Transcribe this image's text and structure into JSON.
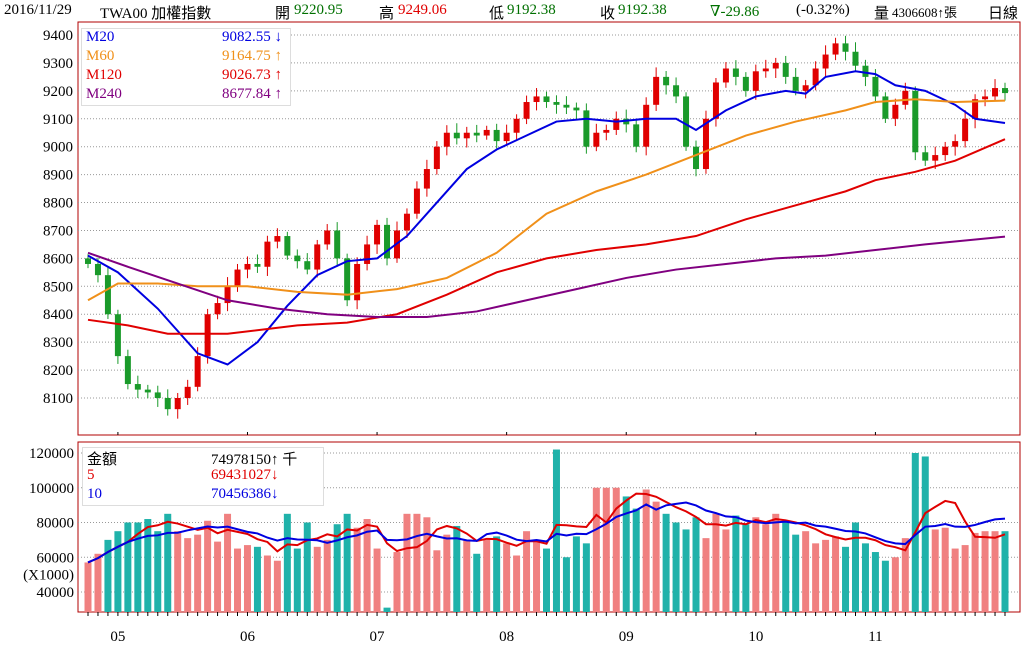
{
  "header": {
    "date": "2016/11/29",
    "symbol": "TWA00 加權指數",
    "open_label": "開",
    "open": "9220.95",
    "high_label": "高",
    "high": "9249.06",
    "low_label": "低",
    "low": "9192.38",
    "close_label": "收",
    "close": "9192.38",
    "change": "∇-29.86",
    "change_pct": "(-0.32%)",
    "volume_label": "量",
    "volume": "4306608↑張",
    "period": "日線"
  },
  "colors": {
    "up": "#e00000",
    "down": "#1a9a2a",
    "vol_up": "#f08080",
    "vol_down": "#20b2aa",
    "m20": "#0000e0",
    "m60": "#f0901a",
    "m120": "#e00000",
    "m240": "#800080"
  },
  "chart_data": [
    {
      "type": "candlestick",
      "title": "TWA00 加權指數 日線",
      "ylim": [
        8000,
        9420
      ],
      "yticks": [
        8100,
        8200,
        8300,
        8400,
        8500,
        8600,
        8700,
        8800,
        8900,
        9000,
        9100,
        9200,
        9300,
        9400
      ],
      "month_labels": [
        {
          "label": "05",
          "index": 3
        },
        {
          "label": "06",
          "index": 16
        },
        {
          "label": "07",
          "index": 29
        },
        {
          "label": "08",
          "index": 42
        },
        {
          "label": "09",
          "index": 54
        },
        {
          "label": "10",
          "index": 67
        },
        {
          "label": "11",
          "index": 79
        }
      ],
      "closes": [
        8580,
        8540,
        8400,
        8250,
        8150,
        8130,
        8120,
        8100,
        8060,
        8100,
        8140,
        8250,
        8400,
        8440,
        8500,
        8560,
        8580,
        8570,
        8660,
        8680,
        8610,
        8590,
        8560,
        8650,
        8700,
        8600,
        8450,
        8580,
        8650,
        8720,
        8600,
        8700,
        8760,
        8850,
        8920,
        9000,
        9050,
        9030,
        9050,
        9040,
        9060,
        9020,
        9050,
        9100,
        9160,
        9180,
        9160,
        9150,
        9140,
        9130,
        9000,
        9050,
        9060,
        9100,
        9080,
        9000,
        9150,
        9250,
        9220,
        9180,
        9000,
        8920,
        9100,
        9230,
        9280,
        9250,
        9200,
        9270,
        9280,
        9300,
        9250,
        9200,
        9220,
        9280,
        9330,
        9370,
        9340,
        9290,
        9250,
        9180,
        9100,
        9150,
        9200,
        8980,
        8950,
        8970,
        9000,
        9020,
        9100,
        9170,
        9180,
        9210,
        9192
      ],
      "moving_averages": [
        {
          "name": "M20",
          "value": "9082.55 ↓",
          "color_key": "m20",
          "points": [
            [
              0,
              8610
            ],
            [
              3,
              8550
            ],
            [
              7,
              8420
            ],
            [
              11,
              8260
            ],
            [
              14,
              8220
            ],
            [
              17,
              8300
            ],
            [
              20,
              8430
            ],
            [
              23,
              8540
            ],
            [
              26,
              8590
            ],
            [
              29,
              8600
            ],
            [
              32,
              8680
            ],
            [
              35,
              8800
            ],
            [
              38,
              8920
            ],
            [
              41,
              8990
            ],
            [
              44,
              9040
            ],
            [
              47,
              9090
            ],
            [
              50,
              9100
            ],
            [
              53,
              9090
            ],
            [
              56,
              9100
            ],
            [
              59,
              9100
            ],
            [
              61,
              9060
            ],
            [
              64,
              9130
            ],
            [
              67,
              9180
            ],
            [
              70,
              9200
            ],
            [
              72,
              9190
            ],
            [
              74,
              9250
            ],
            [
              77,
              9270
            ],
            [
              79,
              9260
            ],
            [
              81,
              9220
            ],
            [
              84,
              9200
            ],
            [
              87,
              9150
            ],
            [
              89,
              9100
            ],
            [
              92,
              9085
            ]
          ]
        },
        {
          "name": "M60",
          "value": "9164.75 ↑",
          "color_key": "m60",
          "points": [
            [
              0,
              8450
            ],
            [
              3,
              8510
            ],
            [
              7,
              8510
            ],
            [
              11,
              8500
            ],
            [
              16,
              8500
            ],
            [
              21,
              8480
            ],
            [
              26,
              8470
            ],
            [
              31,
              8490
            ],
            [
              36,
              8530
            ],
            [
              41,
              8620
            ],
            [
              46,
              8760
            ],
            [
              51,
              8840
            ],
            [
              56,
              8900
            ],
            [
              61,
              8970
            ],
            [
              66,
              9040
            ],
            [
              71,
              9090
            ],
            [
              76,
              9130
            ],
            [
              79,
              9160
            ],
            [
              83,
              9170
            ],
            [
              87,
              9160
            ],
            [
              92,
              9165
            ]
          ]
        },
        {
          "name": "M120",
          "value": "9026.73 ↑",
          "color_key": "m120",
          "points": [
            [
              0,
              8380
            ],
            [
              4,
              8360
            ],
            [
              8,
              8330
            ],
            [
              14,
              8330
            ],
            [
              21,
              8360
            ],
            [
              26,
              8370
            ],
            [
              31,
              8400
            ],
            [
              36,
              8470
            ],
            [
              41,
              8550
            ],
            [
              46,
              8600
            ],
            [
              51,
              8630
            ],
            [
              56,
              8650
            ],
            [
              61,
              8680
            ],
            [
              66,
              8740
            ],
            [
              71,
              8790
            ],
            [
              76,
              8840
            ],
            [
              79,
              8880
            ],
            [
              83,
              8910
            ],
            [
              87,
              8950
            ],
            [
              92,
              9027
            ]
          ]
        },
        {
          "name": "M240",
          "value": "8677.84 ↑",
          "color_key": "m240",
          "points": [
            [
              0,
              8620
            ],
            [
              4,
              8570
            ],
            [
              9,
              8510
            ],
            [
              14,
              8450
            ],
            [
              19,
              8420
            ],
            [
              24,
              8400
            ],
            [
              29,
              8390
            ],
            [
              34,
              8390
            ],
            [
              39,
              8410
            ],
            [
              44,
              8450
            ],
            [
              49,
              8490
            ],
            [
              54,
              8530
            ],
            [
              59,
              8560
            ],
            [
              64,
              8580
            ],
            [
              69,
              8600
            ],
            [
              74,
              8610
            ],
            [
              79,
              8630
            ],
            [
              84,
              8650
            ],
            [
              92,
              8678
            ]
          ]
        }
      ]
    },
    {
      "type": "bar",
      "title": "金額",
      "unit_label": "(X1000)",
      "ylim": [
        28000,
        125000
      ],
      "yticks": [
        40000,
        60000,
        80000,
        100000,
        120000
      ],
      "legend": [
        {
          "name": "金額",
          "value": "74978150↑ 千",
          "color": "#000000"
        },
        {
          "name": "5",
          "value": "69431027↓",
          "color": "#e00000"
        },
        {
          "name": "10",
          "value": "70456386↓",
          "color": "#0000e0"
        }
      ],
      "values_thousands": [
        57,
        62,
        70,
        75,
        80,
        80,
        82,
        75,
        85,
        75,
        71,
        73,
        81,
        69,
        85,
        65,
        67,
        66,
        61,
        58,
        85,
        65,
        80,
        66,
        70,
        79,
        85,
        77,
        82,
        65,
        31,
        63,
        85,
        85,
        83,
        64,
        73,
        78,
        70,
        62,
        70,
        72,
        68,
        61,
        75,
        70,
        65,
        122,
        60,
        72,
        68,
        100,
        100,
        100,
        95,
        88,
        99,
        92,
        85,
        80,
        76,
        83,
        71,
        85,
        76,
        84,
        79,
        83,
        79,
        85,
        80,
        73,
        75,
        68,
        70,
        72,
        66,
        80,
        68,
        63,
        58,
        60,
        71,
        120,
        118,
        76,
        77,
        65,
        67,
        74,
        75,
        75,
        75
      ],
      "up": [
        1,
        1,
        0,
        0,
        0,
        0,
        0,
        0,
        0,
        1,
        1,
        1,
        1,
        1,
        1,
        1,
        1,
        0,
        1,
        1,
        0,
        0,
        0,
        1,
        1,
        0,
        0,
        1,
        1,
        1,
        0,
        1,
        1,
        1,
        1,
        1,
        1,
        0,
        1,
        0,
        1,
        0,
        1,
        1,
        1,
        1,
        0,
        0,
        0,
        0,
        0,
        1,
        1,
        1,
        0,
        0,
        1,
        1,
        0,
        0,
        0,
        0,
        1,
        1,
        1,
        0,
        0,
        1,
        1,
        1,
        0,
        0,
        1,
        1,
        1,
        1,
        0,
        0,
        0,
        0,
        0,
        1,
        1,
        0,
        0,
        1,
        1,
        1,
        1,
        1,
        1,
        1,
        0
      ]
    }
  ]
}
